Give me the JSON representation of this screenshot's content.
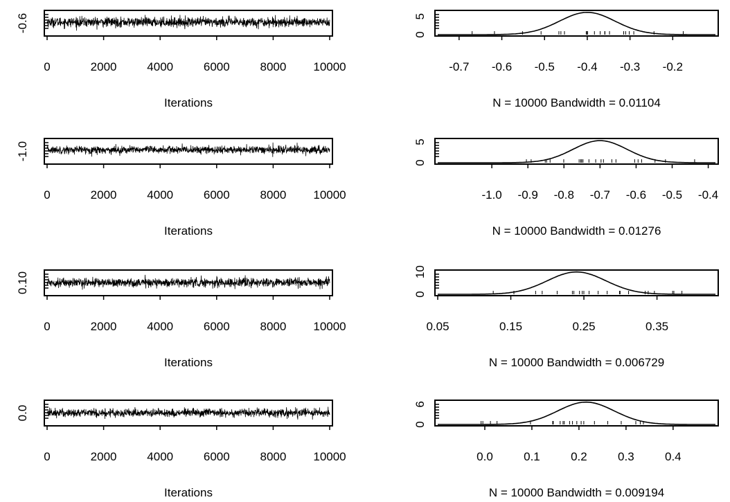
{
  "chart_data": [
    {
      "type": "line",
      "role": "trace",
      "xlabel": "Iterations",
      "x_ticks": [
        0,
        2000,
        4000,
        6000,
        8000,
        10000
      ],
      "x_tick_labels": [
        "0",
        "2000",
        "4000",
        "6000",
        "8000",
        "10000"
      ],
      "xlim": [
        0,
        10000
      ],
      "y_ticks": [
        -0.6
      ],
      "y_tick_labels": [
        "-0.6"
      ],
      "ylim": [
        -0.7,
        -0.15
      ],
      "mean": -0.4,
      "sd": 0.065,
      "n": 10000
    },
    {
      "type": "line",
      "role": "density",
      "xlabel": "N = 10000   Bandwidth = 0.01104",
      "x_ticks": [
        -0.7,
        -0.6,
        -0.5,
        -0.4,
        -0.3,
        -0.2
      ],
      "x_tick_labels": [
        "-0.7",
        "-0.6",
        "-0.5",
        "-0.4",
        "-0.3",
        "-0.2"
      ],
      "xlim": [
        -0.75,
        -0.1
      ],
      "y_ticks": [
        0,
        5
      ],
      "y_tick_labels": [
        "0",
        "5"
      ],
      "ylim": [
        0,
        6.3
      ],
      "mean": -0.4,
      "sd": 0.065
    },
    {
      "type": "line",
      "role": "trace",
      "xlabel": "Iterations",
      "x_ticks": [
        0,
        2000,
        4000,
        6000,
        8000,
        10000
      ],
      "x_tick_labels": [
        "0",
        "2000",
        "4000",
        "6000",
        "8000",
        "10000"
      ],
      "xlim": [
        0,
        10000
      ],
      "y_ticks": [
        -1.0
      ],
      "y_tick_labels": [
        "-1.0"
      ],
      "ylim": [
        -1.15,
        -0.35
      ],
      "mean": -0.7,
      "sd": 0.075,
      "n": 10000
    },
    {
      "type": "line",
      "role": "density",
      "xlabel": "N = 10000   Bandwidth = 0.01276",
      "x_ticks": [
        -1.0,
        -0.9,
        -0.8,
        -0.7,
        -0.6,
        -0.5,
        -0.4
      ],
      "x_tick_labels": [
        "-1.0",
        "-0.9",
        "-0.8",
        "-0.7",
        "-0.6",
        "-0.5",
        "-0.4"
      ],
      "xlim": [
        -1.15,
        -0.38
      ],
      "y_ticks": [
        0,
        5
      ],
      "y_tick_labels": [
        "0",
        "5"
      ],
      "ylim": [
        0,
        5.5
      ],
      "mean": -0.7,
      "sd": 0.075
    },
    {
      "type": "line",
      "role": "trace",
      "xlabel": "Iterations",
      "x_ticks": [
        0,
        2000,
        4000,
        6000,
        8000,
        10000
      ],
      "x_tick_labels": [
        "0",
        "2000",
        "4000",
        "6000",
        "8000",
        "10000"
      ],
      "xlim": [
        0,
        10000
      ],
      "y_ticks": [
        0.1
      ],
      "y_tick_labels": [
        "0.10"
      ],
      "ylim": [
        0.05,
        0.42
      ],
      "mean": 0.24,
      "sd": 0.04,
      "n": 10000
    },
    {
      "type": "line",
      "role": "density",
      "xlabel": "N = 10000   Bandwidth = 0.006729",
      "x_ticks": [
        0.05,
        0.15,
        0.25,
        0.35
      ],
      "x_tick_labels": [
        "0.05",
        "0.15",
        "0.25",
        "0.35"
      ],
      "xlim": [
        0.05,
        0.43
      ],
      "y_ticks": [
        0,
        10
      ],
      "y_tick_labels": [
        "0",
        "10"
      ],
      "ylim": [
        0,
        10.2
      ],
      "mean": 0.24,
      "sd": 0.04
    },
    {
      "type": "line",
      "role": "trace",
      "xlabel": "Iterations",
      "x_ticks": [
        0,
        2000,
        4000,
        6000,
        8000,
        10000
      ],
      "x_tick_labels": [
        "0",
        "2000",
        "4000",
        "6000",
        "8000",
        "10000"
      ],
      "xlim": [
        0,
        10000
      ],
      "y_ticks": [
        0.0
      ],
      "y_tick_labels": [
        "0.0"
      ],
      "ylim": [
        -0.08,
        0.5
      ],
      "mean": 0.215,
      "sd": 0.06,
      "n": 10000
    },
    {
      "type": "line",
      "role": "density",
      "xlabel": "N = 10000   Bandwidth = 0.009194",
      "x_ticks": [
        0.0,
        0.1,
        0.2,
        0.3,
        0.4
      ],
      "x_tick_labels": [
        "0.0",
        "0.1",
        "0.2",
        "0.3",
        "0.4"
      ],
      "xlim": [
        -0.1,
        0.49
      ],
      "y_ticks": [
        0,
        6
      ],
      "y_tick_labels": [
        "0",
        "6"
      ],
      "ylim": [
        0,
        6.8
      ],
      "mean": 0.215,
      "sd": 0.06
    }
  ]
}
